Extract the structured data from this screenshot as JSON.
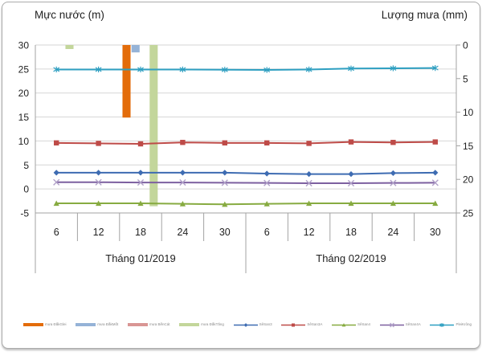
{
  "titles": {
    "left": "Mực nước (m)",
    "right": "Lượng mưa (mm)"
  },
  "chart_data": {
    "type": "combo (bar + line, dual axis)",
    "title": "",
    "categories": [
      "6",
      "12",
      "18",
      "24",
      "30",
      "6",
      "12",
      "18",
      "24",
      "30"
    ],
    "month_groups": [
      {
        "label": "Tháng 01/2019",
        "span": 5
      },
      {
        "label": "Tháng 02/2019",
        "span": 5
      }
    ],
    "left_axis": {
      "title": "Mực nước (m)",
      "min": -5,
      "max": 30,
      "step": 5,
      "ticks": [
        30,
        25,
        20,
        15,
        10,
        5,
        0,
        -5
      ]
    },
    "right_axis": {
      "title": "Lượng mưa (mm)",
      "min": 0,
      "max": 25,
      "step": 5,
      "inverted": true,
      "ticks": [
        0,
        5,
        10,
        15,
        20,
        25
      ]
    },
    "grid": true,
    "legend_position": "bottom",
    "bar_series": [
      {
        "name": "mưa ĐắkGlei",
        "color": "#e36c0a",
        "values": [
          0,
          0,
          10.8,
          0,
          0,
          0,
          0,
          0,
          0,
          0
        ]
      },
      {
        "name": "mưa ĐắkMốt",
        "color": "#95b3d7",
        "values": [
          0,
          0,
          1.1,
          0,
          0,
          0,
          0,
          0,
          0,
          0
        ]
      },
      {
        "name": "mưa BếnCát",
        "color": "#d99694",
        "values": [
          0,
          0,
          0,
          0,
          0,
          0,
          0,
          0,
          0,
          0
        ]
      },
      {
        "name": "mưa ĐắkTăng",
        "color": "#c3d69b",
        "values": [
          0.6,
          0,
          24,
          0,
          0,
          0,
          0,
          0,
          0,
          0
        ]
      }
    ],
    "line_series": [
      {
        "name": "SêSan3",
        "color": "#3e6cb2",
        "marker": "diamond",
        "values": [
          3.4,
          3.4,
          3.4,
          3.4,
          3.4,
          3.2,
          3.1,
          3.1,
          3.3,
          3.4
        ]
      },
      {
        "name": "SêSan3A",
        "color": "#be4b48",
        "marker": "square",
        "values": [
          9.6,
          9.5,
          9.4,
          9.7,
          9.6,
          9.6,
          9.5,
          9.8,
          9.7,
          9.8
        ]
      },
      {
        "name": "SêSan4",
        "color": "#87ab41",
        "marker": "triangle",
        "values": [
          -3.0,
          -3.0,
          -3.0,
          -3.1,
          -3.2,
          -3.1,
          -3.0,
          -3.0,
          -3.0,
          -3.0
        ]
      },
      {
        "name": "SêSan4A",
        "color": "#7d60a0",
        "marker": "x",
        "marker_color": "#b0a0c8",
        "values": [
          1.4,
          1.4,
          1.35,
          1.35,
          1.3,
          1.25,
          1.2,
          1.2,
          1.25,
          1.3
        ]
      },
      {
        "name": "PleiKrông",
        "color": "#2e9fc1",
        "marker": "asterisk",
        "values": [
          24.9,
          24.9,
          24.9,
          24.9,
          24.85,
          24.8,
          24.9,
          25.1,
          25.15,
          25.2
        ]
      }
    ]
  }
}
